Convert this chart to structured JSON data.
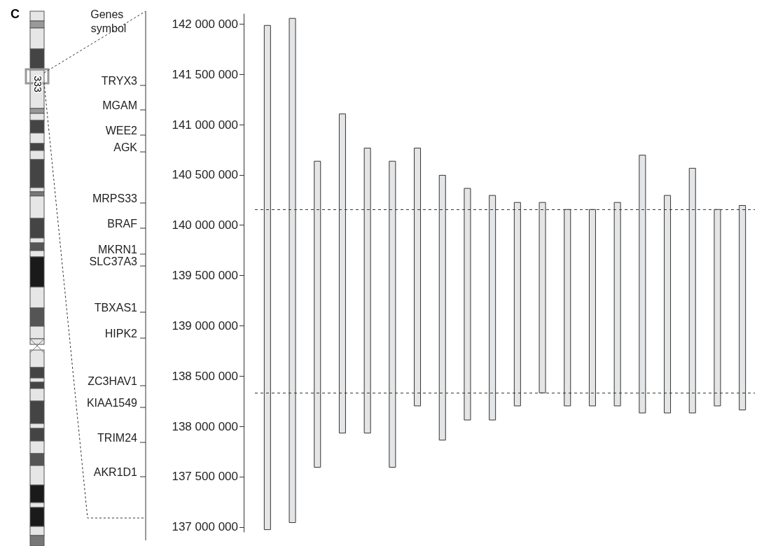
{
  "chart_data": {
    "type": "bar",
    "title": "C",
    "categories": [
      null,
      null,
      null,
      null,
      null,
      null,
      null,
      null,
      null,
      null,
      null,
      null,
      null,
      null,
      null,
      null,
      null,
      null,
      null,
      null
    ],
    "base": [
      136970000,
      137040000,
      137590000,
      137930000,
      137930000,
      137590000,
      138200000,
      137860000,
      138060000,
      138060000,
      138200000,
      138330000,
      138200000,
      138200000,
      138200000,
      138130000,
      138130000,
      138130000,
      138200000,
      138160000
    ],
    "values": [
      5020000,
      5020000,
      3050000,
      3180000,
      2840000,
      3050000,
      2570000,
      2640000,
      2310000,
      2240000,
      2030000,
      1900000,
      1960000,
      1960000,
      2030000,
      2570000,
      2170000,
      2440000,
      1960000,
      2040000
    ],
    "color": "#e4e5e6",
    "ylim": [
      136950000,
      142100000
    ],
    "yticks": [
      {
        "value": 137000000,
        "label": "137 000 000"
      },
      {
        "value": 137500000,
        "label": "137 500 000"
      },
      {
        "value": 138000000,
        "label": "138 000 000"
      },
      {
        "value": 138500000,
        "label": "138 500 000"
      },
      {
        "value": 139000000,
        "label": "139 000 000"
      },
      {
        "value": 139500000,
        "label": "139 500 000"
      },
      {
        "value": 140000000,
        "label": "140 000 000"
      },
      {
        "value": 140500000,
        "label": "140 500 000"
      },
      {
        "value": 141000000,
        "label": "141 000 000"
      },
      {
        "value": 141500000,
        "label": "141 500 000"
      },
      {
        "value": 142000000,
        "label": "142 000 000"
      }
    ],
    "ref_lines": [
      {
        "axis": "y",
        "value": 140160000,
        "line_style": "dashed"
      },
      {
        "axis": "y",
        "value": 138330000,
        "line_style": "dashed"
      }
    ],
    "grid": false,
    "annotations": [
      "Genes symbol",
      "333",
      "TRYX3",
      "MGAM",
      "WEE2",
      "AGK",
      "MRPS33",
      "BRAF",
      "MKRN1",
      "SLC37A3",
      "TBXAS1",
      "HIPK2",
      "ZC3HAV1",
      "KIAA1549",
      "TRIM24",
      "AKR1D1"
    ]
  }
}
